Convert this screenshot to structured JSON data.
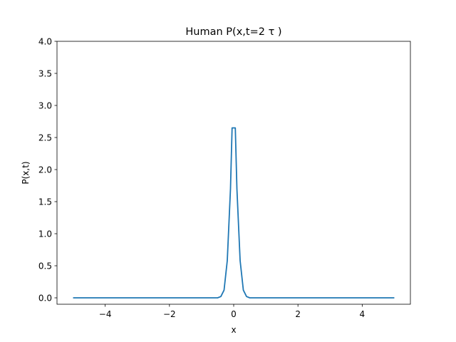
{
  "chart_data": {
    "type": "line",
    "title": "Human P(x,t=2 τ )",
    "xlabel": "x",
    "ylabel": "P(x,t)",
    "xlim": [
      -5.5,
      5.5
    ],
    "ylim": [
      -0.1,
      4.0
    ],
    "xticks": [
      -4,
      -2,
      0,
      2,
      4
    ],
    "xtick_labels": [
      "−4",
      "−2",
      "0",
      "2",
      "4"
    ],
    "yticks": [
      0.0,
      0.5,
      1.0,
      1.5,
      2.0,
      2.5,
      3.0,
      3.5,
      4.0
    ],
    "ytick_labels": [
      "0.0",
      "0.5",
      "1.0",
      "1.5",
      "2.0",
      "2.5",
      "3.0",
      "3.5",
      "4.0"
    ],
    "grid": false,
    "legend": "none",
    "series": [
      {
        "color": "#1f77b4",
        "x": [
          -5.0,
          -0.5,
          -0.4,
          -0.3,
          -0.2,
          -0.1,
          -0.05,
          0.05,
          0.1,
          0.2,
          0.3,
          0.4,
          0.5,
          5.0
        ],
        "y": [
          0.0,
          0.0,
          0.02,
          0.12,
          0.58,
          1.7,
          2.65,
          2.65,
          1.7,
          0.58,
          0.12,
          0.02,
          0.0,
          0.0
        ]
      }
    ]
  }
}
